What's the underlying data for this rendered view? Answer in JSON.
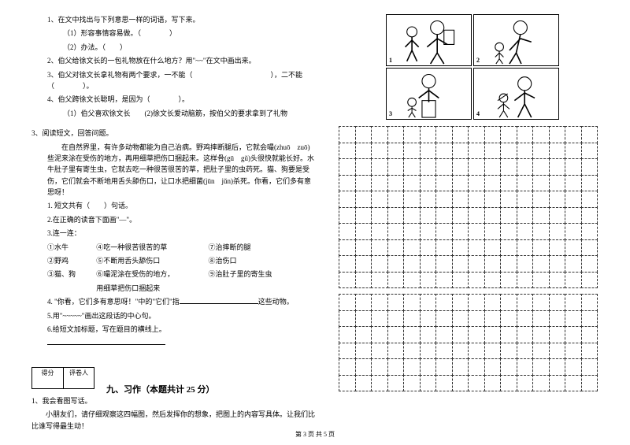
{
  "left": {
    "q1": {
      "l1": "1、在文中找出与下列意思一样的词语，写下来。",
      "l2": "（1）形容事情容易做。（　　　　）",
      "l3": "（2）办法。（　　）",
      "l4": "2、伯父给徐文长的一包礼物放在什么地方？用\"~~\"在文中画出来。",
      "l5": "3、伯父对徐文长拿礼物有两个要求，一不能（　　　　　　　　　　　），二不能（　　　　）。",
      "l6": "4、伯父跨徐文长聪明，是因为（　　　　）。",
      "l7": "（1）伯父喜欢徐文长　　(2)徐文长爱动脑筋，按伯父的要求拿到了礼物"
    },
    "q3": {
      "title": "3、阅读短文，回答问题。",
      "p1": "　　在自然界里，有许多动物都能为自己治病。野鸡摔断腿后，它就会嘬(zhuō　zuō)些泥来涂在受伤的地方，再用细草把伤口捆起来。这样骨(gū　gǔ)头很快就能长好。水牛肚子里有寄生虫，它就去吃一种很苦很苦的草，把肚子里的虫药死。猫、狗要是受伤，它们就会不断地用舌头舔伤口，让口水把细菌(jūn　jǔn)杀死。你看，它们多有意思呀！",
      "s1": "1. 短文共有（　　）句话。",
      "s2": "2.在正确的读音下面画\"—\"。",
      "s3": "3.连一连：",
      "r1a": "①水牛",
      "r1b": "④吃一种很苦很苦的草",
      "r1c": "⑦治摔断的腿",
      "r2a": "②野鸡",
      "r2b": "⑤不断用舌头舔伤口",
      "r2c": "⑧治伤口",
      "r3a": "③猫、狗",
      "r3b": "⑥嘬泥涂在受伤的地方，",
      "r3c": "⑨治肚子里的寄生虫",
      "r3d": "用细草把伤口捆起来",
      "s4a": "4. \"你看，它们多有意思呀！\"中的\"它们\"指",
      "s4b": "这些动物。",
      "s5": "5.用\"~~~~~\"画出这段话的中心句。",
      "s6": "6.给短文加标题，写在题目的横线上。"
    },
    "section9": {
      "score_left": "得分",
      "score_right": "评卷人",
      "title": "九、习作（本题共计 25 分）"
    },
    "writing": {
      "l1": "1、我会看图写话。",
      "l2": "　　小朋友们，请仔细观察这四幅图，然后发挥你的想象，把图上的内容写具体。让我们比比谁写得最生动！"
    }
  },
  "comic": {
    "panels": [
      "1",
      "2",
      "3",
      "4"
    ]
  },
  "grid": {
    "rows1": 10,
    "rows2": 6,
    "cols": 16,
    "border_color": "#333333"
  },
  "footer": "第 3 页 共 5 页",
  "colors": {
    "text": "#000000",
    "bg": "#ffffff"
  }
}
